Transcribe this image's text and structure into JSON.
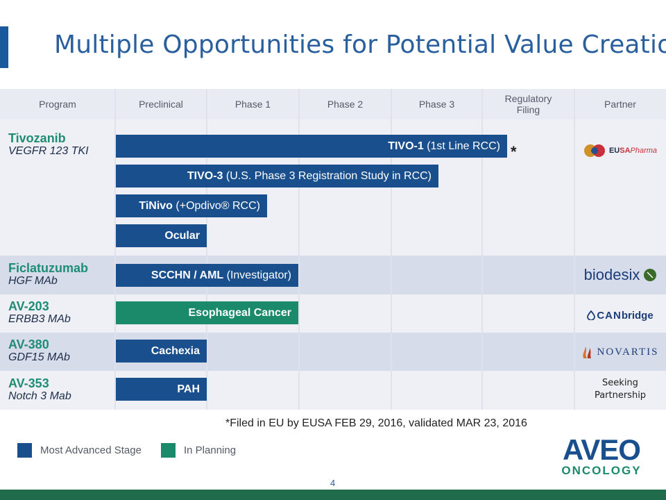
{
  "title": "Multiple Opportunities for Potential Value Creation",
  "colors": {
    "most_advanced": "#1a4f8e",
    "in_planning": "#1b8a6b",
    "program_name": "#1f8c74",
    "title": "#2a5f9e"
  },
  "headers": [
    "Program",
    "Preclinical",
    "Phase 1",
    "Phase 2",
    "Phase 3",
    "Regulatory\nFiling",
    "Partner"
  ],
  "programs": [
    {
      "name": "Tivozanib",
      "sub": "VEGFR 123 TKI"
    },
    {
      "name": "Ficlatuzumab",
      "sub": "HGF MAb"
    },
    {
      "name": "AV-203",
      "sub": "ERBB3 MAb"
    },
    {
      "name": "AV-380",
      "sub": "GDF15 MAb"
    },
    {
      "name": "AV-353",
      "sub": "Notch 3 Mab"
    }
  ],
  "bars": [
    {
      "bold": "TIVO-1",
      "rest": " (1st Line RCC)"
    },
    {
      "bold": "TIVO-3",
      "rest": " (U.S. Phase 3 Registration Study in RCC)"
    },
    {
      "bold": "TiNivo",
      "rest": " (+Opdivo® RCC)"
    },
    {
      "bold": "Ocular",
      "rest": ""
    },
    {
      "bold": "SCCHN / AML",
      "rest": " (Investigator)"
    },
    {
      "bold": "Esophageal Cancer",
      "rest": ""
    },
    {
      "bold": "Cachexia",
      "rest": ""
    },
    {
      "bold": "PAH",
      "rest": ""
    }
  ],
  "filing_mark": "*",
  "partners": {
    "eusa_a": "EU",
    "eusa_b": "SA",
    "eusa_c": "Pharma",
    "biodesix": "biodesix",
    "canbridge_a": "CAN",
    "canbridge_b": "bridge",
    "novartis": "NOVARTIS",
    "seeking": "Seeking\nPartnership"
  },
  "footnote": "*Filed in EU by EUSA FEB 29, 2016, validated MAR 23, 2016",
  "legend": {
    "most_advanced": "Most Advanced Stage",
    "in_planning": "In Planning"
  },
  "logo": {
    "top": "AVEO",
    "bottom": "ONCOLOGY"
  },
  "page_number": "4"
}
